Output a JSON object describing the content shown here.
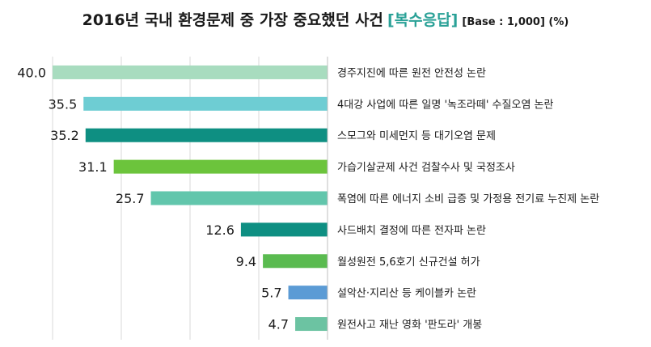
{
  "title": {
    "main": "2016년 국내 환경문제 중 가장 중요했던 사건",
    "tag": "[복수응답]",
    "base": "[Base : 1,000] (%)"
  },
  "chart_data": {
    "type": "bar",
    "orientation": "horizontal",
    "title": "2016년 국내 환경문제 중 가장 중요했던 사건 [복수응답] [Base : 1,000] (%)",
    "categories": [
      "경주지진에 따른 원전 안전성 논란",
      "4대강 사업에 따른 일명 '녹조라떼' 수질오염 논란",
      "스모그와 미세먼지 등 대기오염 문제",
      "가습기살균제 사건 검찰수사 및 국정조사",
      "폭염에 따른 에너지 소비 급증 및 가정용 전기료 누진제 논란",
      "사드배치 결정에 따른 전자파 논란",
      "월성원전 5,6호기 신규건설 허가",
      "설악산·지리산 등 케이블카 논란",
      "원전사고 재난 영화 '판도라' 개봉"
    ],
    "values": [
      40.0,
      35.5,
      35.2,
      31.1,
      25.7,
      12.6,
      9.4,
      5.7,
      4.7
    ],
    "value_labels": [
      "40.0",
      "35.5",
      "35.2",
      "31.1",
      "25.7",
      "12.6",
      "9.4",
      "5.7",
      "4.7"
    ],
    "colors": [
      "#a8dcbf",
      "#6ecdd3",
      "#0e8f82",
      "#6cc43c",
      "#62c6ac",
      "#0e8f82",
      "#5abb50",
      "#5b9bd5",
      "#6cc3a2"
    ],
    "xlim": [
      0,
      40
    ],
    "grid": true,
    "bars_direction": "right-to-left",
    "label_position": "right"
  }
}
